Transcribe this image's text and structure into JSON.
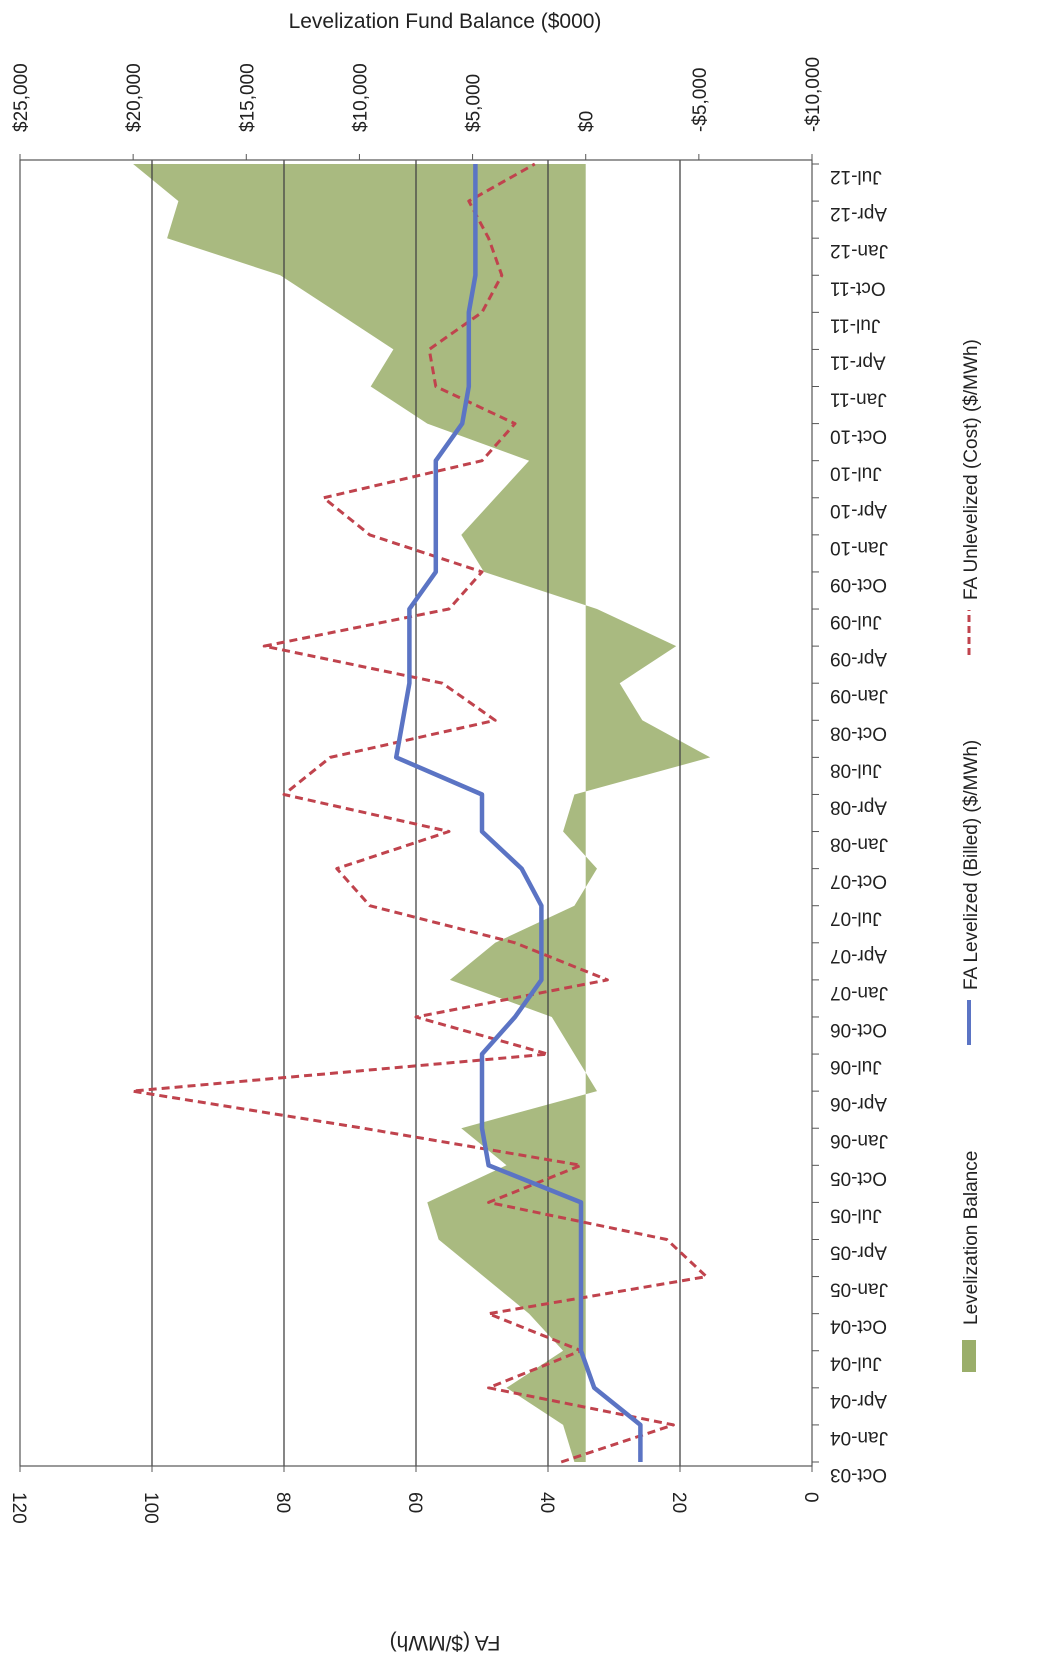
{
  "chart_data": {
    "type": "line",
    "orientation": "rotated 90 degrees clockwise (time runs top to bottom)",
    "title": "",
    "top_axis": {
      "label": "Levelization Fund Balance ($000)",
      "tick_labels": [
        "$25,000",
        "$20,000",
        "$15,000",
        "$10,000",
        "$5,000",
        "$0",
        "-$5,000",
        "-$10,000"
      ],
      "range": [
        25000,
        -10000
      ]
    },
    "bottom_axis": {
      "label": "FA ($/MWh)",
      "tick_labels": [
        "120",
        "100",
        "80",
        "60",
        "40",
        "20",
        "0"
      ],
      "range": [
        120,
        0
      ]
    },
    "time_axis": {
      "tick_labels": [
        "Jul-12",
        "Apr-12",
        "Jan-12",
        "Oct-11",
        "Jul-11",
        "Apr-11",
        "Jan-11",
        "Oct-10",
        "Jul-10",
        "Apr-10",
        "Jan-10",
        "Oct-09",
        "Jul-09",
        "Apr-09",
        "Jan-09",
        "Oct-08",
        "Jul-08",
        "Apr-08",
        "Jan-08",
        "Oct-07",
        "Jul-07",
        "Apr-07",
        "Jan-07",
        "Oct-06",
        "Jul-06",
        "Apr-06",
        "Jan-06",
        "Oct-05",
        "Jul-05",
        "Apr-05",
        "Jan-05",
        "Oct-04",
        "Jul-04",
        "Apr-04",
        "Jan-04",
        "Oct-03"
      ]
    },
    "grid": true,
    "legend": {
      "position": "right",
      "entries": [
        {
          "label": "Levelization Balance",
          "style": "area",
          "color": "#9aae6a"
        },
        {
          "label": "FA Levelized (Billed)  ($/MWh)",
          "style": "solid",
          "color": "#5b74c4"
        },
        {
          "label": "FA Unlevelized (Cost)  ($/MWh)",
          "style": "dashed",
          "color": "#c0434d"
        }
      ]
    },
    "series": [
      {
        "name": "Levelization Balance",
        "axis": "top",
        "unit": "$000",
        "points": [
          {
            "month": "Oct-03",
            "value": 500
          },
          {
            "month": "Jan-04",
            "value": 1000
          },
          {
            "month": "Apr-04",
            "value": 3500
          },
          {
            "month": "Jul-04",
            "value": 1000
          },
          {
            "month": "Oct-04",
            "value": 2500
          },
          {
            "month": "Jan-05",
            "value": 4500
          },
          {
            "month": "Apr-05",
            "value": 6500
          },
          {
            "month": "Jul-05",
            "value": 7000
          },
          {
            "month": "Oct-05",
            "value": 3500
          },
          {
            "month": "Jan-06",
            "value": 5500
          },
          {
            "month": "Apr-06",
            "value": -500
          },
          {
            "month": "Jul-06",
            "value": 500
          },
          {
            "month": "Oct-06",
            "value": 1500
          },
          {
            "month": "Jan-07",
            "value": 6000
          },
          {
            "month": "Apr-07",
            "value": 4000
          },
          {
            "month": "Jul-07",
            "value": 500
          },
          {
            "month": "Oct-07",
            "value": -500
          },
          {
            "month": "Jan-08",
            "value": 1000
          },
          {
            "month": "Apr-08",
            "value": 500
          },
          {
            "month": "Jul-08",
            "value": -5500
          },
          {
            "month": "Oct-08",
            "value": -2500
          },
          {
            "month": "Jan-09",
            "value": -1500
          },
          {
            "month": "Apr-09",
            "value": -4000
          },
          {
            "month": "Jul-09",
            "value": -500
          },
          {
            "month": "Oct-09",
            "value": 4500
          },
          {
            "month": "Jan-10",
            "value": 5500
          },
          {
            "month": "Apr-10",
            "value": 4000
          },
          {
            "month": "Jul-10",
            "value": 2500
          },
          {
            "month": "Oct-10",
            "value": 7000
          },
          {
            "month": "Jan-11",
            "value": 9500
          },
          {
            "month": "Apr-11",
            "value": 8500
          },
          {
            "month": "Jul-11",
            "value": 11000
          },
          {
            "month": "Oct-11",
            "value": 13500
          },
          {
            "month": "Jan-12",
            "value": 18500
          },
          {
            "month": "Apr-12",
            "value": 18000
          },
          {
            "month": "Jul-12",
            "value": 20000
          }
        ]
      },
      {
        "name": "FA Levelized (Billed)  ($/MWh)",
        "axis": "bottom",
        "unit": "$/MWh",
        "points": [
          {
            "month": "Oct-03",
            "value": 26
          },
          {
            "month": "Jan-04",
            "value": 26
          },
          {
            "month": "Apr-04",
            "value": 33
          },
          {
            "month": "Jul-04",
            "value": 35
          },
          {
            "month": "Oct-04",
            "value": 35
          },
          {
            "month": "Jan-05",
            "value": 35
          },
          {
            "month": "Apr-05",
            "value": 35
          },
          {
            "month": "Jul-05",
            "value": 35
          },
          {
            "month": "Oct-05",
            "value": 49
          },
          {
            "month": "Jan-06",
            "value": 50
          },
          {
            "month": "Apr-06",
            "value": 50
          },
          {
            "month": "Jul-06",
            "value": 50
          },
          {
            "month": "Oct-06",
            "value": 45
          },
          {
            "month": "Jan-07",
            "value": 41
          },
          {
            "month": "Apr-07",
            "value": 41
          },
          {
            "month": "Jul-07",
            "value": 41
          },
          {
            "month": "Oct-07",
            "value": 44
          },
          {
            "month": "Jan-08",
            "value": 50
          },
          {
            "month": "Apr-08",
            "value": 50
          },
          {
            "month": "Jul-08",
            "value": 63
          },
          {
            "month": "Oct-08",
            "value": 62
          },
          {
            "month": "Jan-09",
            "value": 61
          },
          {
            "month": "Apr-09",
            "value": 61
          },
          {
            "month": "Jul-09",
            "value": 61
          },
          {
            "month": "Oct-09",
            "value": 57
          },
          {
            "month": "Jan-10",
            "value": 57
          },
          {
            "month": "Apr-10",
            "value": 57
          },
          {
            "month": "Jul-10",
            "value": 57
          },
          {
            "month": "Oct-10",
            "value": 53
          },
          {
            "month": "Jan-11",
            "value": 52
          },
          {
            "month": "Apr-11",
            "value": 52
          },
          {
            "month": "Jul-11",
            "value": 52
          },
          {
            "month": "Oct-11",
            "value": 51
          },
          {
            "month": "Jan-12",
            "value": 51
          },
          {
            "month": "Apr-12",
            "value": 51
          },
          {
            "month": "Jul-12",
            "value": 51
          }
        ]
      },
      {
        "name": "FA Unlevelized (Cost)  ($/MWh)",
        "axis": "bottom",
        "unit": "$/MWh",
        "points": [
          {
            "month": "Oct-03",
            "value": 38
          },
          {
            "month": "Jan-04",
            "value": 21
          },
          {
            "month": "Apr-04",
            "value": 49
          },
          {
            "month": "Jul-04",
            "value": 35
          },
          {
            "month": "Oct-04",
            "value": 49
          },
          {
            "month": "Jan-05",
            "value": 16
          },
          {
            "month": "Apr-05",
            "value": 22
          },
          {
            "month": "Jul-05",
            "value": 49
          },
          {
            "month": "Oct-05",
            "value": 35
          },
          {
            "month": "Jan-06",
            "value": 68
          },
          {
            "month": "Apr-06",
            "value": 103
          },
          {
            "month": "Jul-06",
            "value": 40
          },
          {
            "month": "Oct-06",
            "value": 60
          },
          {
            "month": "Jan-07",
            "value": 31
          },
          {
            "month": "Apr-07",
            "value": 45
          },
          {
            "month": "Jul-07",
            "value": 67
          },
          {
            "month": "Oct-07",
            "value": 72
          },
          {
            "month": "Jan-08",
            "value": 55
          },
          {
            "month": "Apr-08",
            "value": 80
          },
          {
            "month": "Jul-08",
            "value": 73
          },
          {
            "month": "Oct-08",
            "value": 48
          },
          {
            "month": "Jan-09",
            "value": 56
          },
          {
            "month": "Apr-09",
            "value": 83
          },
          {
            "month": "Jul-09",
            "value": 55
          },
          {
            "month": "Oct-09",
            "value": 50
          },
          {
            "month": "Jan-10",
            "value": 67
          },
          {
            "month": "Apr-10",
            "value": 74
          },
          {
            "month": "Jul-10",
            "value": 50
          },
          {
            "month": "Oct-10",
            "value": 45
          },
          {
            "month": "Jan-11",
            "value": 57
          },
          {
            "month": "Apr-11",
            "value": 58
          },
          {
            "month": "Jul-11",
            "value": 50
          },
          {
            "month": "Oct-11",
            "value": 47
          },
          {
            "month": "Jan-12",
            "value": 49
          },
          {
            "month": "Apr-12",
            "value": 52
          },
          {
            "month": "Jul-12",
            "value": 42
          }
        ]
      }
    ],
    "colors": {
      "grid": "#444444",
      "frame": "#555555",
      "area": "#9aae6a",
      "levelized": "#5b74c4",
      "unlevelized": "#c0434d"
    }
  }
}
